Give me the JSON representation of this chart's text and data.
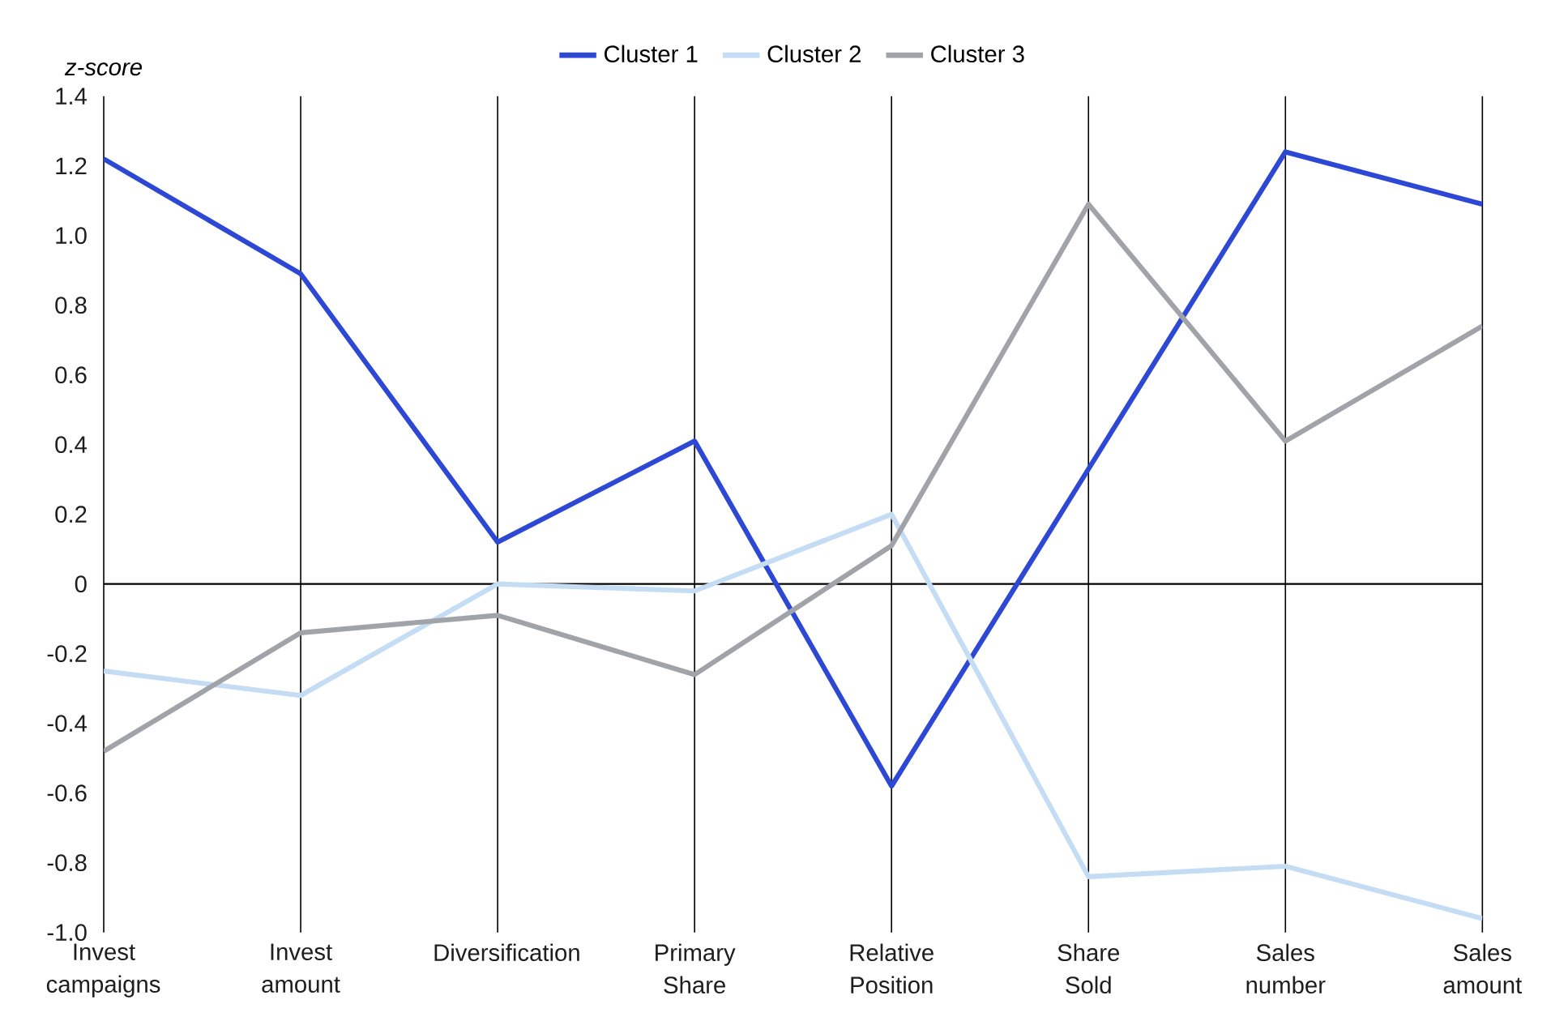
{
  "chart_data": {
    "type": "line",
    "ylabel": "z-score",
    "categories": [
      "Invest campaigns",
      "Invest amount",
      "Diversification",
      "Primary Share",
      "Relative Position",
      "Share Sold",
      "Sales number",
      "Sales amount"
    ],
    "series": [
      {
        "name": "Cluster 1",
        "color": "#2e48d6",
        "values": [
          1.22,
          0.89,
          0.12,
          0.41,
          -0.58,
          0.33,
          1.24,
          1.09
        ]
      },
      {
        "name": "Cluster 2",
        "color": "#c5dcf5",
        "values": [
          -0.25,
          -0.32,
          0.0,
          -0.02,
          0.2,
          -0.84,
          -0.81,
          -0.96
        ]
      },
      {
        "name": "Cluster 3",
        "color": "#a0a4a8",
        "values": [
          -0.48,
          -0.14,
          -0.09,
          -0.26,
          0.11,
          1.09,
          0.41,
          0.74
        ]
      }
    ],
    "ylim": [
      -1.0,
      1.4
    ],
    "yticks": [
      {
        "value": -1.0,
        "label": "-1.0"
      },
      -0.8,
      -0.6,
      -0.4,
      -0.2,
      0,
      0.2,
      0.4,
      0.6,
      0.8,
      {
        "value": 1.0,
        "label": "1.0"
      },
      1.2,
      1.4
    ],
    "ref_lines": [
      {
        "axis": "y",
        "value": 0,
        "color": "#000000"
      }
    ],
    "grid": "x",
    "legend": "top",
    "marker": "none",
    "line_style": "solid"
  }
}
